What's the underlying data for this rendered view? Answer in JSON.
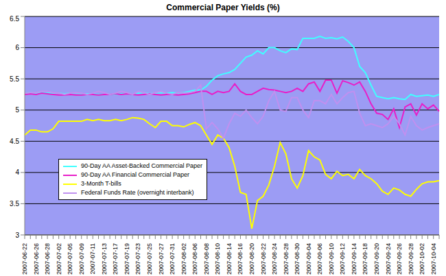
{
  "chart_data": {
    "type": "line",
    "title": "Commercial Paper Yields (%)",
    "categories": [
      "2007-06-22",
      null,
      "2007-06-26",
      null,
      "2007-06-28",
      null,
      "2007-07-02",
      null,
      "2007-07-05",
      null,
      "2007-07-09",
      null,
      "2007-07-11",
      null,
      "2007-07-13",
      null,
      "2007-07-17",
      null,
      "2007-07-19",
      null,
      "2007-07-23",
      null,
      "2007-07-25",
      null,
      "2007-07-27",
      null,
      "2007-07-31",
      null,
      "2007-08-02",
      null,
      "2007-08-06",
      null,
      "2007-08-08",
      null,
      "2007-08-10",
      null,
      "2007-08-14",
      null,
      "2007-08-16",
      null,
      "2007-08-20",
      null,
      "2007-08-22",
      null,
      "2007-08-24",
      null,
      "2007-08-28",
      null,
      "2007-08-30",
      null,
      "2007-09-04",
      null,
      "2007-09-06",
      null,
      "2007-09-10",
      null,
      "2007-09-12",
      null,
      "2007-09-14",
      null,
      "2007-09-18",
      null,
      "2007-09-20",
      null,
      "2007-09-24",
      null,
      "2007-09-26",
      null,
      "2007-09-28",
      null,
      "2007-10-02",
      null,
      "2007-10-04",
      null
    ],
    "series": [
      {
        "name": "90-Day AA Asset-Backed Commercial Paper",
        "color": "#40ffff",
        "values": [
          5.27,
          5.28,
          5.27,
          5.28,
          5.27,
          5.27,
          5.27,
          5.26,
          5.27,
          5.27,
          5.26,
          5.26,
          5.26,
          5.25,
          5.25,
          5.25,
          5.25,
          5.26,
          5.26,
          5.25,
          5.27,
          5.28,
          5.26,
          5.27,
          5.28,
          5.27,
          5.28,
          5.27,
          5.28,
          5.3,
          5.32,
          5.32,
          5.38,
          5.48,
          5.55,
          5.58,
          5.6,
          5.65,
          5.75,
          5.85,
          5.88,
          5.95,
          5.9,
          6.0,
          6.0,
          5.95,
          5.92,
          5.98,
          5.97,
          6.15,
          6.15,
          6.15,
          6.18,
          6.15,
          6.16,
          6.14,
          6.17,
          6.1,
          6.0,
          5.7,
          5.6,
          5.4,
          5.22,
          5.2,
          5.18,
          5.2,
          5.18,
          5.17,
          5.25,
          5.22,
          5.23,
          5.24,
          5.22,
          5.25
        ]
      },
      {
        "name": "90-Day AA Financial Commercial Paper",
        "color": "#e81ec8",
        "values": [
          5.25,
          5.26,
          5.25,
          5.27,
          5.26,
          5.25,
          5.24,
          5.24,
          5.25,
          5.24,
          5.24,
          5.25,
          5.25,
          5.24,
          5.25,
          5.25,
          5.26,
          5.25,
          5.26,
          5.25,
          5.24,
          5.25,
          5.26,
          5.25,
          5.24,
          5.25,
          5.25,
          5.24,
          5.25,
          5.26,
          5.28,
          5.3,
          5.3,
          5.25,
          5.3,
          5.28,
          5.3,
          5.42,
          5.3,
          5.25,
          5.25,
          5.3,
          5.35,
          5.33,
          5.32,
          5.3,
          5.28,
          5.3,
          5.35,
          5.3,
          5.42,
          5.45,
          5.3,
          5.48,
          5.48,
          5.27,
          5.47,
          5.44,
          5.4,
          5.45,
          5.3,
          5.1,
          4.95,
          4.93,
          4.85,
          5.02,
          4.72,
          5.05,
          5.1,
          4.92,
          5.1,
          5.02,
          5.08,
          4.98
        ]
      },
      {
        "name": "3-Month T-bills",
        "color": "#ffff00",
        "values": [
          4.6,
          4.68,
          4.68,
          4.65,
          4.65,
          4.7,
          4.82,
          4.82,
          4.82,
          4.82,
          4.82,
          4.85,
          4.83,
          4.85,
          4.83,
          4.83,
          4.85,
          4.83,
          4.85,
          4.88,
          4.87,
          4.85,
          4.78,
          4.72,
          4.82,
          4.82,
          4.75,
          4.75,
          4.73,
          4.77,
          4.8,
          4.75,
          4.6,
          4.45,
          4.6,
          4.55,
          4.4,
          4.1,
          3.68,
          3.65,
          3.1,
          3.55,
          3.62,
          3.8,
          4.1,
          4.48,
          4.3,
          3.9,
          3.75,
          3.95,
          4.35,
          4.25,
          4.2,
          3.97,
          3.9,
          4.02,
          3.95,
          3.97,
          3.9,
          4.05,
          3.95,
          3.9,
          3.82,
          3.7,
          3.65,
          3.75,
          3.72,
          3.65,
          3.62,
          3.73,
          3.82,
          3.85,
          3.85,
          3.87
        ]
      },
      {
        "name": "Federal Funds Rate (overnight interbank)",
        "color": "#c090f0",
        "values": [
          5.27,
          5.28,
          5.28,
          5.3,
          5.3,
          5.28,
          5.27,
          5.25,
          5.27,
          5.28,
          5.27,
          5.25,
          5.27,
          5.3,
          5.28,
          5.25,
          5.27,
          5.3,
          5.28,
          5.25,
          5.3,
          5.28,
          5.25,
          5.28,
          5.3,
          5.27,
          5.25,
          5.28,
          5.27,
          5.28,
          5.3,
          5.4,
          4.7,
          4.8,
          4.7,
          4.55,
          4.78,
          4.95,
          4.9,
          5.0,
          4.88,
          4.78,
          4.9,
          5.15,
          5.3,
          5.0,
          4.98,
          5.2,
          5.2,
          5.0,
          4.88,
          5.15,
          5.15,
          5.1,
          5.25,
          5.1,
          5.2,
          5.28,
          5.3,
          4.95,
          4.75,
          4.78,
          4.75,
          4.72,
          4.78,
          4.9,
          4.78,
          4.6,
          4.9,
          4.75,
          4.68,
          4.72,
          4.75,
          4.78
        ]
      }
    ],
    "ylim": [
      3,
      6.5
    ],
    "yticks": [
      3,
      3.5,
      4,
      4.5,
      5,
      5.5,
      6,
      6.5
    ],
    "grid": true,
    "legend": "lower left"
  }
}
